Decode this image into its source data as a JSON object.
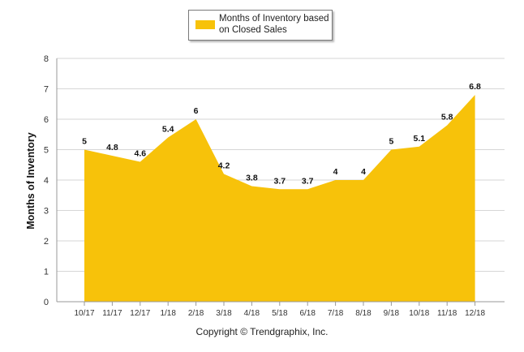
{
  "chart_data": {
    "type": "area",
    "categories": [
      "10/17",
      "11/17",
      "12/17",
      "1/18",
      "2/18",
      "3/18",
      "4/18",
      "5/18",
      "6/18",
      "7/18",
      "8/18",
      "9/18",
      "10/18",
      "11/18",
      "12/18"
    ],
    "series": [
      {
        "name": "Months of Inventory based on Closed Sales",
        "values": [
          5,
          4.8,
          4.6,
          5.4,
          6,
          4.2,
          3.8,
          3.7,
          3.7,
          4,
          4,
          5,
          5.1,
          5.8,
          6.8
        ],
        "data_labels": [
          "5",
          "4.8",
          "4.6",
          "5.4",
          "6",
          "4.2",
          "3.8",
          "3.7",
          "3.7",
          "4",
          "4",
          "5",
          "5.1",
          "5.8",
          "6.8"
        ]
      }
    ],
    "ylabel": "Months of Inventory",
    "ylim": [
      0,
      8
    ],
    "yticks": [
      "0",
      "1",
      "2",
      "3",
      "4",
      "5",
      "6",
      "7",
      "8"
    ],
    "grid": true,
    "legend_position": "top-center",
    "colors": {
      "area": "#f7c20a",
      "grid": "#d6d6d6"
    }
  },
  "legend": {
    "label": "Months of Inventory based on Closed Sales"
  },
  "footer": {
    "copyright": "Copyright © Trendgraphix, Inc."
  }
}
